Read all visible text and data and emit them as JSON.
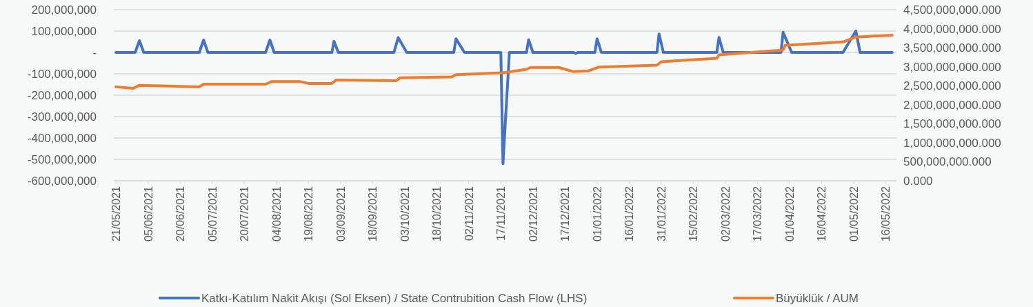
{
  "chart_data": {
    "type": "line",
    "xlim": [
      "2021-05-20",
      "2022-05-21"
    ],
    "xticks": [
      {
        "value": "2021-05-21",
        "label": "21/05/2021"
      },
      {
        "value": "2021-06-05",
        "label": "05/06/2021"
      },
      {
        "value": "2021-06-20",
        "label": "20/06/2021"
      },
      {
        "value": "2021-07-05",
        "label": "05/07/2021"
      },
      {
        "value": "2021-07-20",
        "label": "20/07/2021"
      },
      {
        "value": "2021-08-04",
        "label": "04/08/2021"
      },
      {
        "value": "2021-08-19",
        "label": "19/08/2021"
      },
      {
        "value": "2021-09-03",
        "label": "03/09/2021"
      },
      {
        "value": "2021-09-18",
        "label": "18/09/2021"
      },
      {
        "value": "2021-10-03",
        "label": "03/10/2021"
      },
      {
        "value": "2021-10-18",
        "label": "18/10/2021"
      },
      {
        "value": "2021-11-02",
        "label": "02/11/2021"
      },
      {
        "value": "2021-11-17",
        "label": "17/11/2021"
      },
      {
        "value": "2021-12-02",
        "label": "02/12/2021"
      },
      {
        "value": "2021-12-17",
        "label": "17/12/2021"
      },
      {
        "value": "2022-01-01",
        "label": "01/01/2022"
      },
      {
        "value": "2022-01-16",
        "label": "16/01/2022"
      },
      {
        "value": "2022-01-31",
        "label": "31/01/2022"
      },
      {
        "value": "2022-02-15",
        "label": "15/02/2022"
      },
      {
        "value": "2022-03-02",
        "label": "02/03/2022"
      },
      {
        "value": "2022-03-17",
        "label": "17/03/2022"
      },
      {
        "value": "2022-04-01",
        "label": "01/04/2022"
      },
      {
        "value": "2022-04-16",
        "label": "16/04/2022"
      },
      {
        "value": "2022-05-01",
        "label": "01/05/2022"
      },
      {
        "value": "2022-05-16",
        "label": "16/05/2022"
      }
    ],
    "ylim": [
      -600000000,
      200000000
    ],
    "yticks": [
      {
        "value": -600000000,
        "label": "-600,000,000"
      },
      {
        "value": -500000000,
        "label": "-500,000,000"
      },
      {
        "value": -400000000,
        "label": "-400,000,000"
      },
      {
        "value": -300000000,
        "label": "-300,000,000"
      },
      {
        "value": -200000000,
        "label": "-200,000,000"
      },
      {
        "value": -100000000,
        "label": "-100,000,000"
      },
      {
        "value": 0,
        "label": "-"
      },
      {
        "value": 100000000,
        "label": "100,000,000"
      },
      {
        "value": 200000000,
        "label": "200,000,000"
      }
    ],
    "y2lim": [
      0,
      4500000000
    ],
    "y2ticks": [
      {
        "value": 0,
        "label": "0.000"
      },
      {
        "value": 500000000,
        "label": "500,000,000.000"
      },
      {
        "value": 1000000000,
        "label": "1,000,000,000.000"
      },
      {
        "value": 1500000000,
        "label": "1,500,000,000.000"
      },
      {
        "value": 2000000000,
        "label": "2,000,000,000.000"
      },
      {
        "value": 2500000000,
        "label": "2,500,000,000.000"
      },
      {
        "value": 3000000000,
        "label": "3,000,000,000.000"
      },
      {
        "value": 3500000000,
        "label": "3,500,000,000.000"
      },
      {
        "value": 4000000000,
        "label": "4,000,000,000.000"
      },
      {
        "value": 4500000000,
        "label": "4,500,000,000.000"
      }
    ],
    "grid": "y",
    "legend": "bottom",
    "line_style": "solid",
    "marker": "none",
    "series": [
      {
        "name": "Katkı-Katılım Nakit Akışı (Sol Eksen) / State Contrubition Cash Flow (LHS)",
        "color": "#4472c4",
        "x": [
          "2021-05-21",
          "2021-05-30",
          "2021-06-01",
          "2021-06-03",
          "2021-06-29",
          "2021-07-01",
          "2021-07-03",
          "2021-07-30",
          "2021-08-01",
          "2021-08-03",
          "2021-08-30",
          "2021-08-31",
          "2021-09-02",
          "2021-09-28",
          "2021-09-30",
          "2021-10-04",
          "2021-10-26",
          "2021-10-27",
          "2021-10-31",
          "2021-11-17",
          "2021-11-18",
          "2021-11-21",
          "2021-11-29",
          "2021-11-30",
          "2021-12-02",
          "2021-12-21",
          "2021-12-22",
          "2021-12-23",
          "2021-12-31",
          "2022-01-01",
          "2022-01-03",
          "2022-01-29",
          "2022-01-30",
          "2022-02-01",
          "2022-02-26",
          "2022-02-27",
          "2022-03-01",
          "2022-03-28",
          "2022-03-29",
          "2022-04-02",
          "2022-04-26",
          "2022-05-02",
          "2022-05-04",
          "2022-05-19"
        ],
        "values": [
          0,
          0,
          55000000,
          0,
          0,
          58000000,
          0,
          0,
          58000000,
          0,
          0,
          52000000,
          0,
          0,
          69000000,
          0,
          0,
          64000000,
          0,
          0,
          -520000000,
          0,
          0,
          60000000,
          0,
          0,
          -5000000,
          0,
          0,
          64000000,
          0,
          0,
          86000000,
          0,
          0,
          70000000,
          0,
          0,
          94000000,
          0,
          0,
          100000000,
          0,
          0
        ]
      },
      {
        "name": "Büyüklük / AUM",
        "color": "#ed7d31",
        "axis": "y2",
        "x": [
          "2021-05-21",
          "2021-05-29",
          "2021-06-01",
          "2021-06-29",
          "2021-07-01",
          "2021-07-30",
          "2021-08-02",
          "2021-08-15",
          "2021-08-19",
          "2021-08-30",
          "2021-09-01",
          "2021-09-29",
          "2021-10-01",
          "2021-10-25",
          "2021-10-27",
          "2021-11-18",
          "2021-11-29",
          "2021-12-01",
          "2021-12-14",
          "2021-12-21",
          "2021-12-28",
          "2022-01-02",
          "2022-01-29",
          "2022-01-31",
          "2022-02-26",
          "2022-02-27",
          "2022-03-29",
          "2022-03-30",
          "2022-04-26",
          "2022-05-02",
          "2022-05-19"
        ],
        "values": [
          2470000000,
          2430000000,
          2510000000,
          2470000000,
          2540000000,
          2540000000,
          2610000000,
          2610000000,
          2560000000,
          2560000000,
          2650000000,
          2630000000,
          2710000000,
          2730000000,
          2790000000,
          2840000000,
          2930000000,
          2980000000,
          2980000000,
          2870000000,
          2890000000,
          2990000000,
          3040000000,
          3130000000,
          3220000000,
          3310000000,
          3440000000,
          3560000000,
          3650000000,
          3780000000,
          3830000000
        ]
      }
    ]
  }
}
